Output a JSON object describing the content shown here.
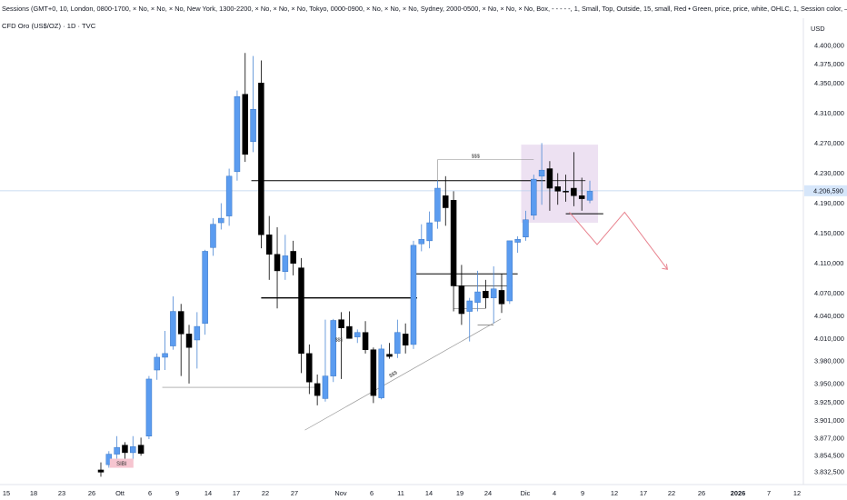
{
  "header": {
    "indicator_line": "Sessions (GMT+0, 10, London, 0800-1700, × No, × No, × No, New York, 1300-2200, × No, × No, × No, Tokyo, 0000-0900, × No, × No, × No, Sydney, 2000-0500, × No, × No, × No, Box, - - - - -, 1, Small, Top, Outside, 15, small, Red • Green, price, price, white, OHLC, 1, Session color, ——"
  },
  "symbol": {
    "label": "CFD Oro (US$/OZ) · 1D · TVC"
  },
  "colors": {
    "bull": "#5b9cf0",
    "bear": "#000000",
    "zone": "#eadcf0",
    "current_line": "#b8d0ee",
    "arrow": "#e8838f",
    "ssl_box": "#f6c5d0"
  },
  "chart_data": {
    "type": "candlestick",
    "currency_label": "USD",
    "current_price": "4.206,590",
    "y_ticks": [
      "4.400,000",
      "4.375,000",
      "4.350,000",
      "4.310,000",
      "4.270,000",
      "4.230,000",
      "4.190,000",
      "4.150,000",
      "4.110,000",
      "4.070,000",
      "4.040,000",
      "4.010,000",
      "3.980,000",
      "3.950,000",
      "3.925,000",
      "3.901,000",
      "3.877,000",
      "3.854,500",
      "3.832,500"
    ],
    "x_ticks": [
      {
        "label": "15",
        "bold": false
      },
      {
        "label": "18",
        "bold": false
      },
      {
        "label": "23",
        "bold": false
      },
      {
        "label": "26",
        "bold": false
      },
      {
        "label": "Ott",
        "bold": false
      },
      {
        "label": "6",
        "bold": false
      },
      {
        "label": "9",
        "bold": false
      },
      {
        "label": "14",
        "bold": false
      },
      {
        "label": "17",
        "bold": false
      },
      {
        "label": "22",
        "bold": false
      },
      {
        "label": "27",
        "bold": false
      },
      {
        "label": "Nov",
        "bold": false
      },
      {
        "label": "6",
        "bold": false
      },
      {
        "label": "11",
        "bold": false
      },
      {
        "label": "14",
        "bold": false
      },
      {
        "label": "19",
        "bold": false
      },
      {
        "label": "24",
        "bold": false
      },
      {
        "label": "Dic",
        "bold": false
      },
      {
        "label": "4",
        "bold": false
      },
      {
        "label": "9",
        "bold": false
      },
      {
        "label": "12",
        "bold": false
      },
      {
        "label": "17",
        "bold": false
      },
      {
        "label": "22",
        "bold": false
      },
      {
        "label": "26",
        "bold": false
      },
      {
        "label": "2026",
        "bold": true
      },
      {
        "label": "7",
        "bold": false
      },
      {
        "label": "12",
        "bold": false
      }
    ],
    "candles": [
      {
        "o": 3835,
        "h": 3845,
        "l": 3826,
        "c": 3832
      },
      {
        "o": 3842,
        "h": 3860,
        "l": 3838,
        "c": 3856
      },
      {
        "o": 3856,
        "h": 3880,
        "l": 3850,
        "c": 3865
      },
      {
        "o": 3868,
        "h": 3872,
        "l": 3848,
        "c": 3858
      },
      {
        "o": 3858,
        "h": 3880,
        "l": 3848,
        "c": 3866
      },
      {
        "o": 3868,
        "h": 3878,
        "l": 3854,
        "c": 3857
      },
      {
        "o": 3880,
        "h": 3960,
        "l": 3876,
        "c": 3956
      },
      {
        "o": 3968,
        "h": 3990,
        "l": 3955,
        "c": 3985
      },
      {
        "o": 3985,
        "h": 4020,
        "l": 3968,
        "c": 3990
      },
      {
        "o": 4000,
        "h": 4066,
        "l": 3995,
        "c": 4046
      },
      {
        "o": 4046,
        "h": 4056,
        "l": 3960,
        "c": 4016
      },
      {
        "o": 4016,
        "h": 4028,
        "l": 3950,
        "c": 3998
      },
      {
        "o": 4008,
        "h": 4045,
        "l": 3970,
        "c": 4026
      },
      {
        "o": 4030,
        "h": 4128,
        "l": 4015,
        "c": 4126
      },
      {
        "o": 4131,
        "h": 4170,
        "l": 4120,
        "c": 4162
      },
      {
        "o": 4164,
        "h": 4190,
        "l": 4155,
        "c": 4170
      },
      {
        "o": 4173,
        "h": 4236,
        "l": 4160,
        "c": 4226
      },
      {
        "o": 4232,
        "h": 4340,
        "l": 4220,
        "c": 4332
      },
      {
        "o": 4335,
        "h": 4390,
        "l": 4245,
        "c": 4255
      },
      {
        "o": 4272,
        "h": 4386,
        "l": 4258,
        "c": 4315
      },
      {
        "o": 4350,
        "h": 4380,
        "l": 4130,
        "c": 4148
      },
      {
        "o": 4148,
        "h": 4173,
        "l": 4088,
        "c": 4122
      },
      {
        "o": 4122,
        "h": 4158,
        "l": 4050,
        "c": 4100
      },
      {
        "o": 4099,
        "h": 4148,
        "l": 4088,
        "c": 4120
      },
      {
        "o": 4126,
        "h": 4140,
        "l": 4094,
        "c": 4110
      },
      {
        "o": 4104,
        "h": 4117,
        "l": 3964,
        "c": 3990
      },
      {
        "o": 3990,
        "h": 4002,
        "l": 3936,
        "c": 3952
      },
      {
        "o": 3950,
        "h": 3962,
        "l": 3921,
        "c": 3934
      },
      {
        "o": 3930,
        "h": 4035,
        "l": 3926,
        "c": 3960
      },
      {
        "o": 3960,
        "h": 4036,
        "l": 3952,
        "c": 4034
      },
      {
        "o": 4035,
        "h": 4045,
        "l": 3956,
        "c": 4024
      },
      {
        "o": 4026,
        "h": 4046,
        "l": 4010,
        "c": 4010
      },
      {
        "o": 4012,
        "h": 4022,
        "l": 4004,
        "c": 4018
      },
      {
        "o": 4018,
        "h": 4033,
        "l": 3990,
        "c": 3995
      },
      {
        "o": 3995,
        "h": 3998,
        "l": 3924,
        "c": 3934
      },
      {
        "o": 3931,
        "h": 4002,
        "l": 3929,
        "c": 3996
      },
      {
        "o": 3989,
        "h": 4004,
        "l": 3983,
        "c": 3986
      },
      {
        "o": 3990,
        "h": 4035,
        "l": 3984,
        "c": 4018
      },
      {
        "o": 4016,
        "h": 4030,
        "l": 3990,
        "c": 4001
      },
      {
        "o": 4002,
        "h": 4140,
        "l": 3996,
        "c": 4134
      },
      {
        "o": 4136,
        "h": 4162,
        "l": 4126,
        "c": 4142
      },
      {
        "o": 4140,
        "h": 4179,
        "l": 4130,
        "c": 4164
      },
      {
        "o": 4166,
        "h": 4220,
        "l": 4156,
        "c": 4210
      },
      {
        "o": 4200,
        "h": 4226,
        "l": 4160,
        "c": 4184
      },
      {
        "o": 4194,
        "h": 4206,
        "l": 4046,
        "c": 4080
      },
      {
        "o": 4080,
        "h": 4108,
        "l": 4028,
        "c": 4043
      },
      {
        "o": 4046,
        "h": 4064,
        "l": 4006,
        "c": 4060
      },
      {
        "o": 4058,
        "h": 4100,
        "l": 4046,
        "c": 4072
      },
      {
        "o": 4073,
        "h": 4088,
        "l": 4050,
        "c": 4064
      },
      {
        "o": 4064,
        "h": 4106,
        "l": 4030,
        "c": 4076
      },
      {
        "o": 4074,
        "h": 4096,
        "l": 4044,
        "c": 4056
      },
      {
        "o": 4060,
        "h": 4140,
        "l": 4056,
        "c": 4140
      },
      {
        "o": 4138,
        "h": 4146,
        "l": 4124,
        "c": 4142
      },
      {
        "o": 4145,
        "h": 4180,
        "l": 4140,
        "c": 4168
      },
      {
        "o": 4174,
        "h": 4228,
        "l": 4168,
        "c": 4222
      },
      {
        "o": 4226,
        "h": 4270,
        "l": 4188,
        "c": 4234
      },
      {
        "o": 4236,
        "h": 4246,
        "l": 4180,
        "c": 4210
      },
      {
        "o": 4212,
        "h": 4230,
        "l": 4188,
        "c": 4206
      },
      {
        "o": 4206,
        "h": 4228,
        "l": 4192,
        "c": 4205
      },
      {
        "o": 4210,
        "h": 4258,
        "l": 4186,
        "c": 4200
      },
      {
        "o": 4200,
        "h": 4224,
        "l": 4180,
        "c": 4196
      },
      {
        "o": 4194,
        "h": 4220,
        "l": 4190,
        "c": 4206
      }
    ],
    "annotations": {
      "sibi_label": "SIBI",
      "ssl_label_top": "$$$",
      "ssl_label_trend": "$$$",
      "ssl_label_small": "$$$"
    }
  }
}
